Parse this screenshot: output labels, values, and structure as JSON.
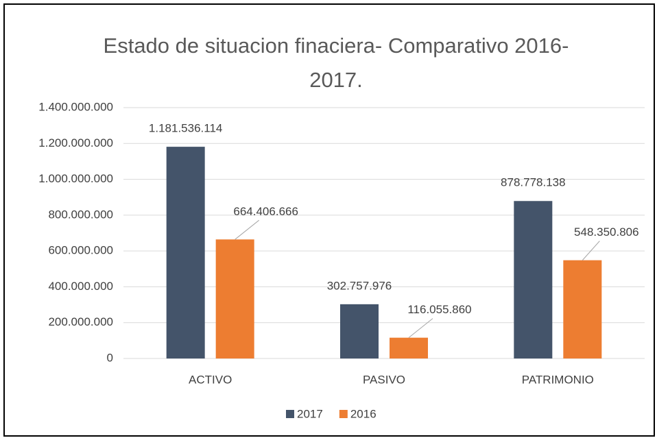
{
  "chart_data": {
    "type": "bar",
    "title": "Estado de situacion finaciera- Comparativo 2016-2017.",
    "categories": [
      "ACTIVO",
      "PASIVO",
      "PATRIMONIO"
    ],
    "series": [
      {
        "name": "2017",
        "color": "#44546a",
        "values": [
          1181536114,
          302757976,
          878778138
        ],
        "value_labels": [
          "1.181.536.114",
          "302.757.976",
          "878.778.138"
        ]
      },
      {
        "name": "2016",
        "color": "#ed7d31",
        "values": [
          664406666,
          116055860,
          548350806
        ],
        "value_labels": [
          "664.406.666",
          "116.055.860",
          "548.350.806"
        ]
      }
    ],
    "ylim": [
      0,
      1400000000
    ],
    "yticks": [
      0,
      {
        "value": 200000000,
        "label": "200.000.000"
      },
      {
        "value": 400000000,
        "label": "400.000.000"
      },
      {
        "value": 600000000,
        "label": "600.000.000"
      },
      {
        "value": 800000000,
        "label": "800.000.000"
      },
      {
        "value": 1000000000,
        "label": "1.000.000.000"
      },
      {
        "value": 1200000000,
        "label": "1.200.000.000"
      },
      {
        "value": 1400000000,
        "label": "1.400.000.000"
      }
    ],
    "grid": true,
    "legend": "bottom"
  }
}
